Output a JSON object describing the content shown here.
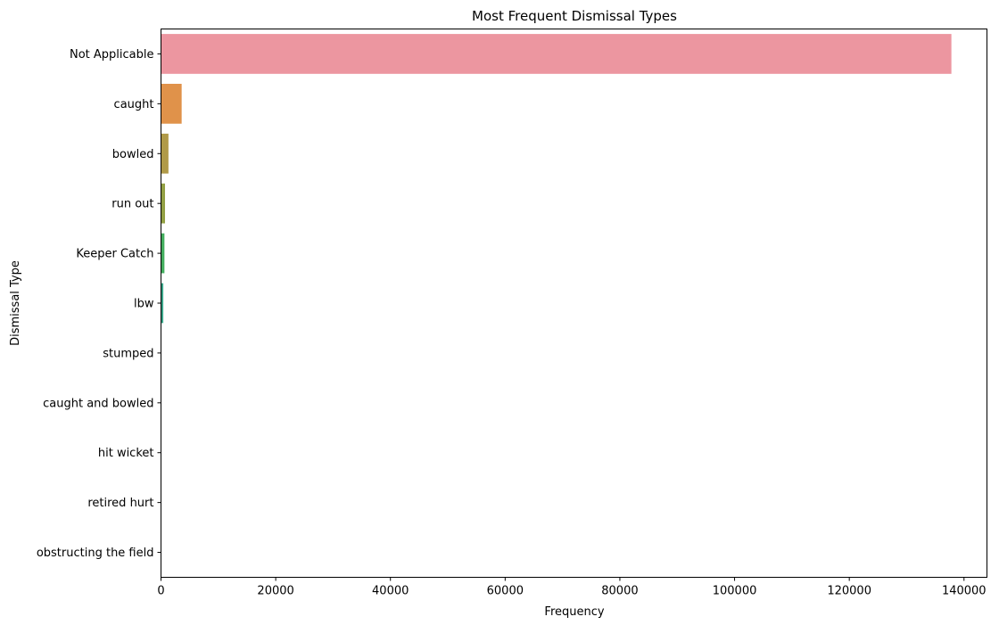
{
  "chart_data": {
    "type": "bar",
    "orientation": "horizontal",
    "title": "Most Frequent Dismissal Types",
    "xlabel": "Frequency",
    "ylabel": "Dismissal Type",
    "xlim": [
      0,
      144000
    ],
    "xticks": [
      0,
      20000,
      40000,
      60000,
      80000,
      100000,
      120000,
      140000
    ],
    "grid": false,
    "categories": [
      "Not Applicable",
      "caught",
      "bowled",
      "run out",
      "Keeper Catch",
      "lbw",
      "stumped",
      "caught and bowled",
      "hit wicket",
      "retired hurt",
      "obstructing the field"
    ],
    "values": [
      137800,
      3600,
      1300,
      700,
      600,
      400,
      60,
      30,
      5,
      2,
      1
    ],
    "colors": [
      "#ec96a0",
      "#e0924a",
      "#b09a48",
      "#93a044",
      "#43ad5f",
      "#3aa68a",
      "#3aa3a3",
      "#3fa0bc",
      "#7a9ee0",
      "#b78fe6",
      "#e78bd0"
    ]
  }
}
